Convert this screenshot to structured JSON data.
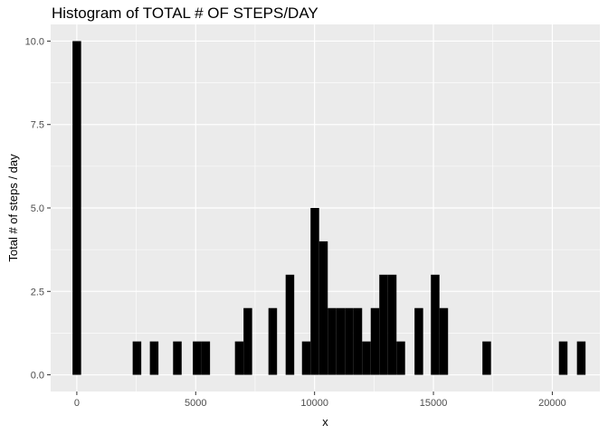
{
  "chart_data": {
    "type": "bar",
    "title": "Histogram of TOTAL # OF STEPS/DAY",
    "xlabel": "x",
    "ylabel": "Total # of steps / day",
    "xlim": [
      -1100,
      22000
    ],
    "ylim": [
      -0.5,
      10.5
    ],
    "bin_width": 361.5,
    "x_ticks": [
      0,
      5000,
      10000,
      15000,
      20000
    ],
    "x_tick_labels": [
      "0",
      "5000",
      "10000",
      "15000",
      "20000"
    ],
    "y_ticks": [
      0,
      2.5,
      5,
      7.5,
      10
    ],
    "y_tick_labels": [
      "0.0",
      "2.5",
      "5.0",
      "7.5",
      "10.0"
    ],
    "grid": true,
    "bar_color": "#000000",
    "panel_color": "#ebebeb",
    "bins": [
      {
        "x": 0,
        "count": 10
      },
      {
        "x": 2530,
        "count": 1
      },
      {
        "x": 3253,
        "count": 1
      },
      {
        "x": 4229,
        "count": 1
      },
      {
        "x": 5061,
        "count": 1
      },
      {
        "x": 5422,
        "count": 1
      },
      {
        "x": 6832,
        "count": 1
      },
      {
        "x": 7193,
        "count": 2
      },
      {
        "x": 8241,
        "count": 2
      },
      {
        "x": 8964,
        "count": 3
      },
      {
        "x": 9651,
        "count": 1
      },
      {
        "x": 10012,
        "count": 5
      },
      {
        "x": 10374,
        "count": 4
      },
      {
        "x": 10735,
        "count": 2
      },
      {
        "x": 11097,
        "count": 2
      },
      {
        "x": 11458,
        "count": 2
      },
      {
        "x": 11820,
        "count": 2
      },
      {
        "x": 12181,
        "count": 1
      },
      {
        "x": 12543,
        "count": 2
      },
      {
        "x": 12904,
        "count": 3
      },
      {
        "x": 13266,
        "count": 3
      },
      {
        "x": 13627,
        "count": 1
      },
      {
        "x": 14386,
        "count": 2
      },
      {
        "x": 15073,
        "count": 3
      },
      {
        "x": 15434,
        "count": 2
      },
      {
        "x": 17241,
        "count": 1
      },
      {
        "x": 20458,
        "count": 1
      },
      {
        "x": 21217,
        "count": 1
      }
    ]
  }
}
